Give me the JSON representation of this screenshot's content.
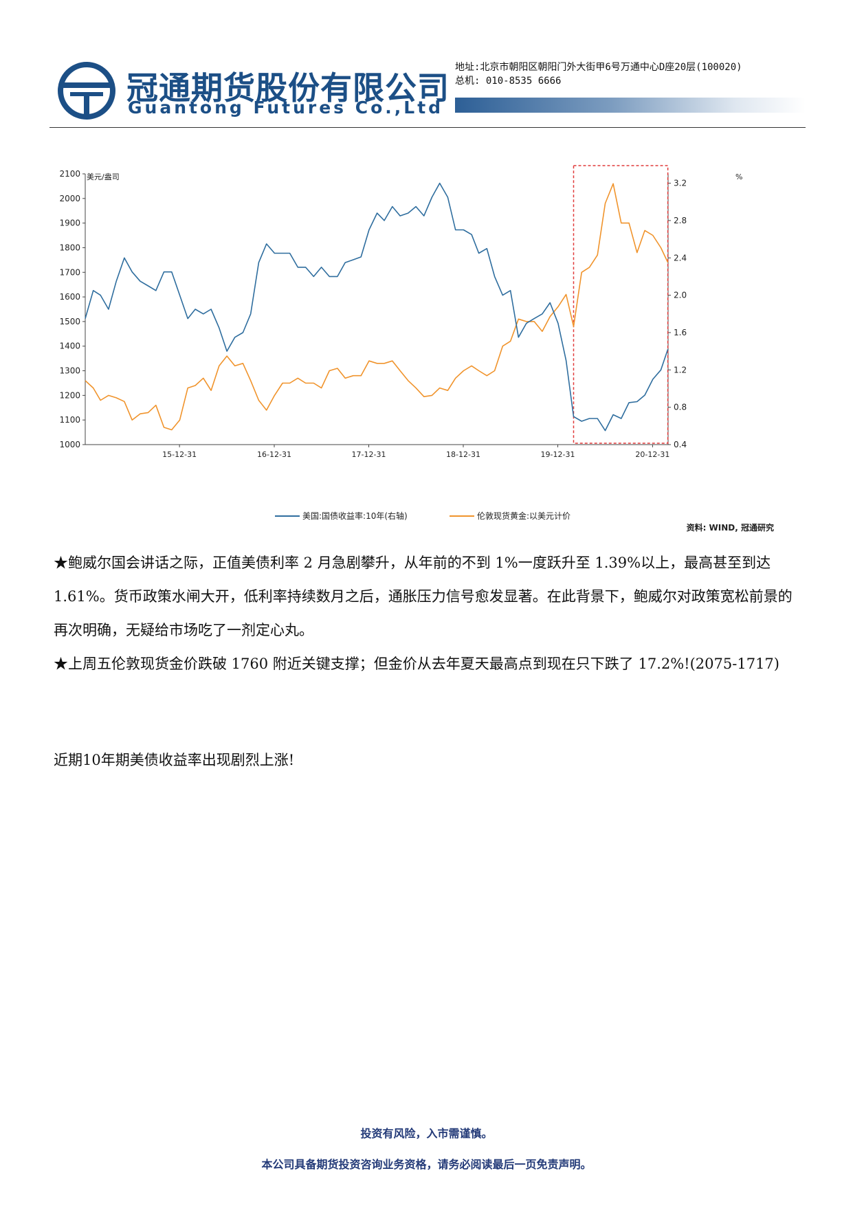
{
  "header": {
    "company_cn": "冠通期货股份有限公司",
    "company_en": "Guantong Futures Co.,Ltd",
    "address": "地址:北京市朝阳区朝阳门外大街甲6号万通中心D座20层(100020)",
    "phone": "总机: 010-8535 6666",
    "colors": {
      "brand": "#1c4f86",
      "bar": "#2d5f96"
    }
  },
  "chart_data": {
    "type": "line",
    "title": "",
    "ylabel_left": "美元/盎司",
    "ylabel_right": "%",
    "ylim_left": [
      1000,
      2100
    ],
    "ylim_right": [
      0.4,
      3.3
    ],
    "yticks_left": [
      1000,
      1100,
      1200,
      1300,
      1400,
      1500,
      1600,
      1700,
      1800,
      1900,
      2000,
      2100
    ],
    "yticks_right": [
      0.4,
      0.8,
      1.2,
      1.6,
      2.0,
      2.4,
      2.8,
      3.2
    ],
    "xlim": [
      "2015-01-01",
      "2021-03-01"
    ],
    "xticks": [
      "15-12-31",
      "16-12-31",
      "17-12-31",
      "18-12-31",
      "19-12-31",
      "20-12-31"
    ],
    "legend_position": "bottom",
    "source": "资料: WIND, 冠通研究",
    "highlight": {
      "x": [
        "2020-03-01",
        "2021-02-28"
      ],
      "color": "#e03a3a",
      "style": "dashed"
    },
    "series": [
      {
        "name": "美国:国债收益率:10年(右轴)",
        "axis": "right",
        "color": "#2e6d9e",
        "points": [
          [
            "2015-01-01",
            1.75
          ],
          [
            "2015-02-01",
            2.05
          ],
          [
            "2015-03-01",
            2.0
          ],
          [
            "2015-04-01",
            1.85
          ],
          [
            "2015-05-01",
            2.15
          ],
          [
            "2015-06-01",
            2.4
          ],
          [
            "2015-07-01",
            2.25
          ],
          [
            "2015-08-01",
            2.15
          ],
          [
            "2015-09-01",
            2.1
          ],
          [
            "2015-10-01",
            2.05
          ],
          [
            "2015-11-01",
            2.25
          ],
          [
            "2015-12-01",
            2.25
          ],
          [
            "2016-01-01",
            2.0
          ],
          [
            "2016-02-01",
            1.75
          ],
          [
            "2016-03-01",
            1.85
          ],
          [
            "2016-04-01",
            1.8
          ],
          [
            "2016-05-01",
            1.85
          ],
          [
            "2016-06-01",
            1.65
          ],
          [
            "2016-07-01",
            1.4
          ],
          [
            "2016-08-01",
            1.55
          ],
          [
            "2016-09-01",
            1.6
          ],
          [
            "2016-10-01",
            1.8
          ],
          [
            "2016-11-01",
            2.35
          ],
          [
            "2016-12-01",
            2.55
          ],
          [
            "2017-01-01",
            2.45
          ],
          [
            "2017-02-01",
            2.45
          ],
          [
            "2017-03-01",
            2.45
          ],
          [
            "2017-04-01",
            2.3
          ],
          [
            "2017-05-01",
            2.3
          ],
          [
            "2017-06-01",
            2.2
          ],
          [
            "2017-07-01",
            2.3
          ],
          [
            "2017-08-01",
            2.2
          ],
          [
            "2017-09-01",
            2.2
          ],
          [
            "2017-10-01",
            2.35
          ],
          [
            "2017-11-01",
            2.38
          ],
          [
            "2017-12-01",
            2.41
          ],
          [
            "2018-01-01",
            2.7
          ],
          [
            "2018-02-01",
            2.88
          ],
          [
            "2018-03-01",
            2.8
          ],
          [
            "2018-04-01",
            2.95
          ],
          [
            "2018-05-01",
            2.85
          ],
          [
            "2018-06-01",
            2.88
          ],
          [
            "2018-07-01",
            2.95
          ],
          [
            "2018-08-01",
            2.85
          ],
          [
            "2018-09-01",
            3.05
          ],
          [
            "2018-10-01",
            3.2
          ],
          [
            "2018-11-01",
            3.05
          ],
          [
            "2018-12-01",
            2.7
          ],
          [
            "2019-01-01",
            2.7
          ],
          [
            "2019-02-01",
            2.65
          ],
          [
            "2019-03-01",
            2.45
          ],
          [
            "2019-04-01",
            2.5
          ],
          [
            "2019-05-01",
            2.2
          ],
          [
            "2019-06-01",
            2.0
          ],
          [
            "2019-07-01",
            2.05
          ],
          [
            "2019-08-01",
            1.55
          ],
          [
            "2019-09-01",
            1.7
          ],
          [
            "2019-10-01",
            1.75
          ],
          [
            "2019-11-01",
            1.8
          ],
          [
            "2019-12-01",
            1.92
          ],
          [
            "2020-01-01",
            1.7
          ],
          [
            "2020-02-01",
            1.3
          ],
          [
            "2020-03-01",
            0.7
          ],
          [
            "2020-04-01",
            0.65
          ],
          [
            "2020-05-01",
            0.68
          ],
          [
            "2020-06-01",
            0.68
          ],
          [
            "2020-07-01",
            0.55
          ],
          [
            "2020-08-01",
            0.72
          ],
          [
            "2020-09-01",
            0.68
          ],
          [
            "2020-10-01",
            0.85
          ],
          [
            "2020-11-01",
            0.86
          ],
          [
            "2020-12-01",
            0.93
          ],
          [
            "2021-01-01",
            1.1
          ],
          [
            "2021-02-01",
            1.2
          ],
          [
            "2021-02-28",
            1.42
          ]
        ]
      },
      {
        "name": "伦敦现货黄金:以美元计价",
        "axis": "left",
        "color": "#f0932b",
        "points": [
          [
            "2015-01-01",
            1260
          ],
          [
            "2015-02-01",
            1230
          ],
          [
            "2015-03-01",
            1180
          ],
          [
            "2015-04-01",
            1200
          ],
          [
            "2015-05-01",
            1190
          ],
          [
            "2015-06-01",
            1175
          ],
          [
            "2015-07-01",
            1100
          ],
          [
            "2015-08-01",
            1125
          ],
          [
            "2015-09-01",
            1130
          ],
          [
            "2015-10-01",
            1160
          ],
          [
            "2015-11-01",
            1070
          ],
          [
            "2015-12-01",
            1060
          ],
          [
            "2016-01-01",
            1100
          ],
          [
            "2016-02-01",
            1230
          ],
          [
            "2016-03-01",
            1240
          ],
          [
            "2016-04-01",
            1270
          ],
          [
            "2016-05-01",
            1220
          ],
          [
            "2016-06-01",
            1320
          ],
          [
            "2016-07-01",
            1360
          ],
          [
            "2016-08-01",
            1320
          ],
          [
            "2016-09-01",
            1330
          ],
          [
            "2016-10-01",
            1260
          ],
          [
            "2016-11-01",
            1180
          ],
          [
            "2016-12-01",
            1140
          ],
          [
            "2017-01-01",
            1200
          ],
          [
            "2017-02-01",
            1250
          ],
          [
            "2017-03-01",
            1250
          ],
          [
            "2017-04-01",
            1270
          ],
          [
            "2017-05-01",
            1250
          ],
          [
            "2017-06-01",
            1250
          ],
          [
            "2017-07-01",
            1230
          ],
          [
            "2017-08-01",
            1300
          ],
          [
            "2017-09-01",
            1310
          ],
          [
            "2017-10-01",
            1270
          ],
          [
            "2017-11-01",
            1280
          ],
          [
            "2017-12-01",
            1280
          ],
          [
            "2018-01-01",
            1340
          ],
          [
            "2018-02-01",
            1330
          ],
          [
            "2018-03-01",
            1330
          ],
          [
            "2018-04-01",
            1340
          ],
          [
            "2018-05-01",
            1300
          ],
          [
            "2018-06-01",
            1260
          ],
          [
            "2018-07-01",
            1230
          ],
          [
            "2018-08-01",
            1195
          ],
          [
            "2018-09-01",
            1200
          ],
          [
            "2018-10-01",
            1230
          ],
          [
            "2018-11-01",
            1220
          ],
          [
            "2018-12-01",
            1270
          ],
          [
            "2019-01-01",
            1300
          ],
          [
            "2019-02-01",
            1320
          ],
          [
            "2019-03-01",
            1300
          ],
          [
            "2019-04-01",
            1280
          ],
          [
            "2019-05-01",
            1300
          ],
          [
            "2019-06-01",
            1400
          ],
          [
            "2019-07-01",
            1420
          ],
          [
            "2019-08-01",
            1510
          ],
          [
            "2019-09-01",
            1500
          ],
          [
            "2019-10-01",
            1500
          ],
          [
            "2019-11-01",
            1460
          ],
          [
            "2019-12-01",
            1520
          ],
          [
            "2020-01-01",
            1560
          ],
          [
            "2020-02-01",
            1610
          ],
          [
            "2020-03-01",
            1480
          ],
          [
            "2020-04-01",
            1700
          ],
          [
            "2020-05-01",
            1720
          ],
          [
            "2020-06-01",
            1770
          ],
          [
            "2020-07-01",
            1980
          ],
          [
            "2020-08-01",
            2060
          ],
          [
            "2020-09-01",
            1900
          ],
          [
            "2020-10-01",
            1900
          ],
          [
            "2020-11-01",
            1780
          ],
          [
            "2020-12-01",
            1870
          ],
          [
            "2021-01-01",
            1850
          ],
          [
            "2021-02-01",
            1800
          ],
          [
            "2021-02-28",
            1740
          ]
        ]
      }
    ]
  },
  "body": {
    "para1": "★鲍威尔国会讲话之际，正值美债利率 2 月急剧攀升，从年前的不到 1%一度跃升至 1.39%以上，最高甚至到达 1.61%。货币政策水闸大开，低利率持续数月之后，通胀压力信号愈发显著。在此背景下，鲍威尔对政策宽松前景的再次明确，无疑给市场吃了一剂定心丸。",
    "para2": "★上周五伦敦现货金价跌破 1760 附近关键支撑；但金价从去年夏天最高点到现在只下跌了 17.2%!(2075-1717)",
    "lead": "近期10年期美债收益率出现剧烈上涨!"
  },
  "footer": {
    "line1": "投资有风险，入市需谨慎。",
    "line2": "本公司具备期货投资咨询业务资格，请务必阅读最后一页免责声明。"
  }
}
